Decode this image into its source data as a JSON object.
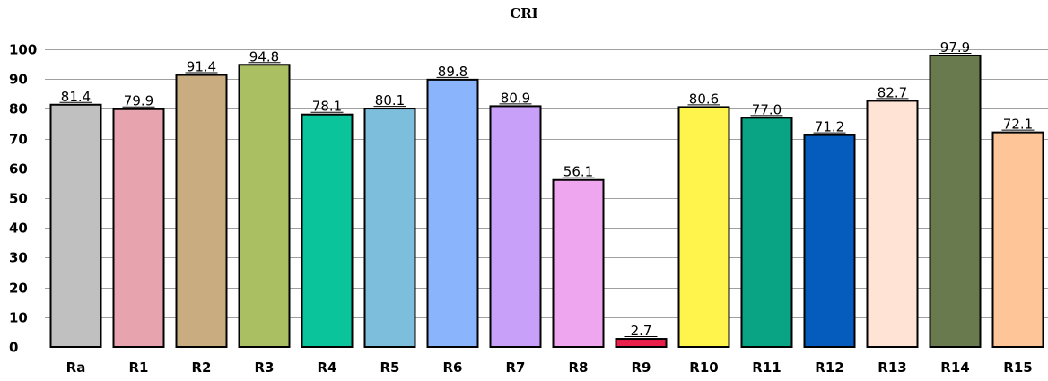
{
  "chart_data": {
    "type": "bar",
    "title": "CRI",
    "xlabel": "",
    "ylabel": "",
    "ylim": [
      0,
      100
    ],
    "yticks": [
      0,
      10,
      20,
      30,
      40,
      50,
      60,
      70,
      80,
      90,
      100
    ],
    "grid": true,
    "categories": [
      "Ra",
      "R1",
      "R2",
      "R3",
      "R4",
      "R5",
      "R6",
      "R7",
      "R8",
      "R9",
      "R10",
      "R11",
      "R12",
      "R13",
      "R14",
      "R15"
    ],
    "values": [
      81.4,
      79.9,
      91.4,
      94.8,
      78.1,
      80.1,
      89.8,
      80.9,
      56.1,
      2.7,
      80.6,
      77.0,
      71.2,
      82.7,
      97.9,
      72.1
    ],
    "value_labels": [
      "81.4",
      "79.9",
      "91.4",
      "94.8",
      "78.1",
      "80.1",
      "89.8",
      "80.9",
      "56.1",
      "2.7",
      "80.6",
      "77.0",
      "71.2",
      "82.7",
      "97.9",
      "72.1"
    ],
    "colors": [
      "#c0c0c0",
      "#e8a4ae",
      "#c9ad80",
      "#a9bf62",
      "#0ac49b",
      "#7ebedd",
      "#8ab4fb",
      "#c8a0fa",
      "#eea6ee",
      "#e8204a",
      "#fef44c",
      "#08a484",
      "#065cbd",
      "#ffe4d6",
      "#687a4e",
      "#fec698"
    ]
  }
}
